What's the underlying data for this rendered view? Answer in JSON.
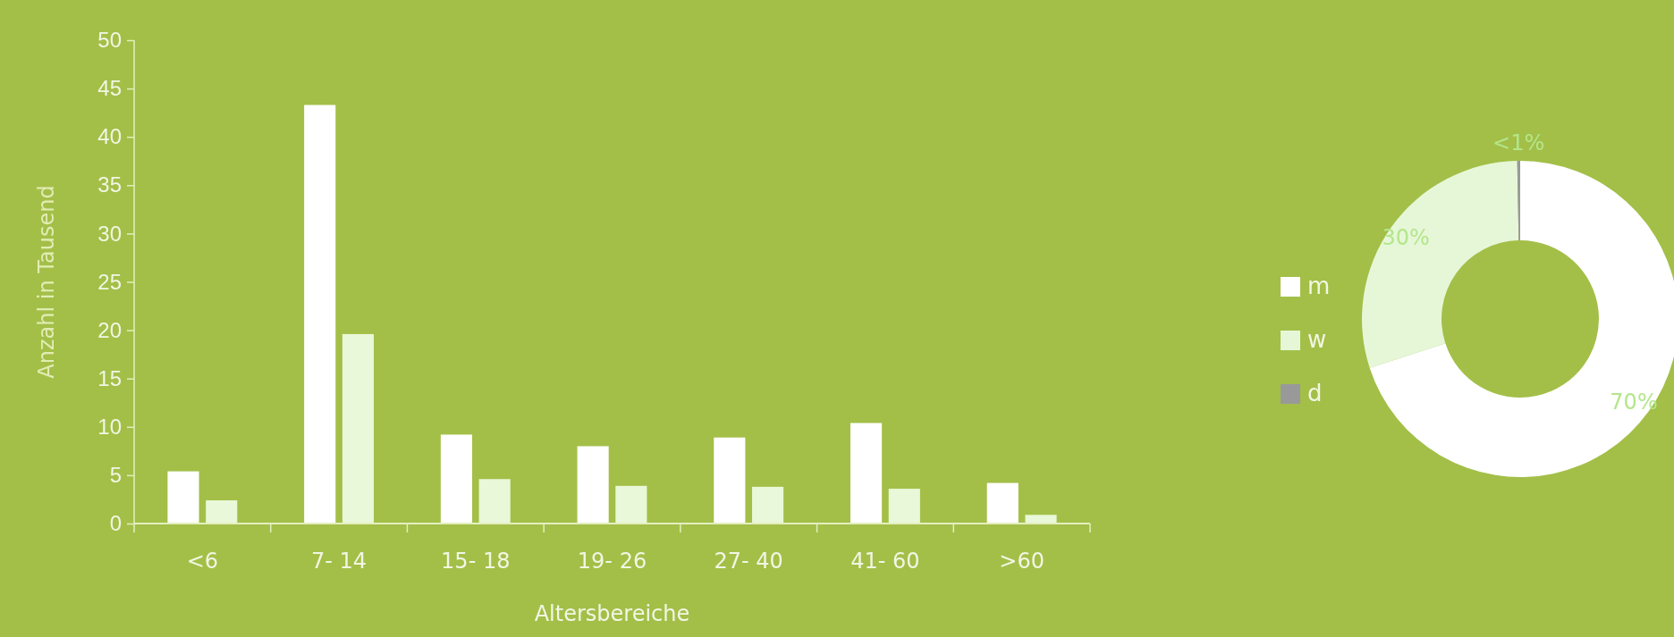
{
  "chart_data": [
    {
      "type": "bar",
      "xlabel": "Altersbereiche",
      "ylabel": "Anzahl in Tausend",
      "categories": [
        "<6",
        "7- 14",
        "15- 18",
        "19- 26",
        "27- 40",
        "41- 60",
        ">60"
      ],
      "series": [
        {
          "color": "#ffffff",
          "values": [
            5.4,
            43.3,
            9.2,
            8.0,
            8.9,
            10.4,
            4.2
          ]
        },
        {
          "color": "#e8f8d8",
          "values": [
            2.4,
            19.6,
            4.6,
            3.9,
            3.8,
            3.6,
            0.9
          ]
        }
      ],
      "ylim": [
        0,
        50
      ],
      "yticks": [
        0,
        5,
        10,
        15,
        20,
        25,
        30,
        35,
        40,
        45,
        50
      ],
      "grid": false,
      "legend": false
    },
    {
      "type": "donut",
      "categories": [
        "m",
        "w",
        "d"
      ],
      "values": [
        70,
        29.7,
        0.3
      ],
      "colors": [
        "#ffffff",
        "#e6f7d8",
        "#999999"
      ],
      "value_labels": [
        "70%",
        "30%",
        "<1%"
      ],
      "legend": "left"
    }
  ]
}
